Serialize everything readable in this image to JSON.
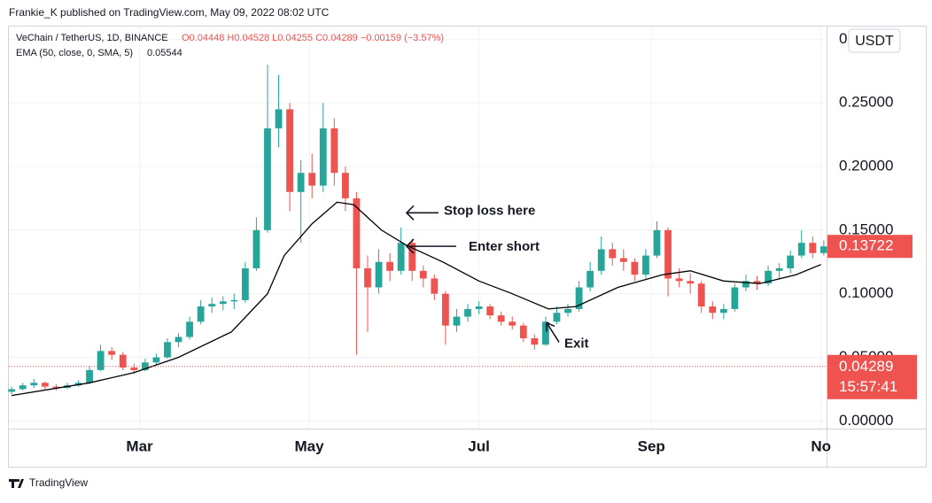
{
  "header": {
    "publisher": "Frankie_K published on TradingView.com, May 09, 2022 08:02 UTC",
    "symbol": "VeChain / TetherUS, 1D, BINANCE",
    "ohlc_text": "O0.04448 H0.04528 L0.04255 C0.04289 −0.00159 (−3.57%)",
    "indicator": "EMA (50, close, 0, SMA, 5)",
    "indicator_value": "0.05544",
    "currency": "USDT"
  },
  "chart_data": {
    "type": "candlestick",
    "x": [
      0,
      4,
      8,
      12,
      16,
      20,
      24,
      28,
      32,
      36,
      40,
      44,
      48,
      52,
      56,
      60,
      64,
      68,
      72,
      76,
      80,
      84,
      88,
      92,
      96,
      100,
      104,
      108,
      112,
      116,
      120,
      124,
      128,
      132,
      136,
      140,
      144,
      148,
      152,
      156,
      160,
      164,
      168,
      172,
      176,
      180,
      184,
      188,
      192,
      196,
      200,
      204,
      208,
      212,
      216,
      220,
      224,
      228,
      232,
      236,
      240,
      244,
      248,
      252,
      256,
      260,
      264,
      268,
      272,
      276,
      280,
      284,
      288,
      292
    ],
    "ohlc": [
      [
        0.023,
        0.027,
        0.021,
        0.025
      ],
      [
        0.025,
        0.03,
        0.024,
        0.028
      ],
      [
        0.028,
        0.033,
        0.026,
        0.03
      ],
      [
        0.03,
        0.031,
        0.025,
        0.027
      ],
      [
        0.027,
        0.029,
        0.024,
        0.026
      ],
      [
        0.026,
        0.03,
        0.025,
        0.028
      ],
      [
        0.028,
        0.032,
        0.027,
        0.03
      ],
      [
        0.03,
        0.043,
        0.029,
        0.04
      ],
      [
        0.04,
        0.06,
        0.039,
        0.055
      ],
      [
        0.055,
        0.058,
        0.048,
        0.052
      ],
      [
        0.052,
        0.054,
        0.04,
        0.042
      ],
      [
        0.042,
        0.045,
        0.037,
        0.04
      ],
      [
        0.04,
        0.049,
        0.039,
        0.046
      ],
      [
        0.046,
        0.053,
        0.044,
        0.05
      ],
      [
        0.05,
        0.065,
        0.049,
        0.062
      ],
      [
        0.062,
        0.069,
        0.058,
        0.066
      ],
      [
        0.066,
        0.082,
        0.064,
        0.078
      ],
      [
        0.078,
        0.095,
        0.076,
        0.09
      ],
      [
        0.09,
        0.097,
        0.085,
        0.092
      ],
      [
        0.092,
        0.098,
        0.087,
        0.094
      ],
      [
        0.094,
        0.1,
        0.088,
        0.095
      ],
      [
        0.095,
        0.125,
        0.093,
        0.12
      ],
      [
        0.12,
        0.16,
        0.118,
        0.15
      ],
      [
        0.15,
        0.28,
        0.148,
        0.23
      ],
      [
        0.23,
        0.272,
        0.215,
        0.245
      ],
      [
        0.245,
        0.25,
        0.165,
        0.18
      ],
      [
        0.18,
        0.205,
        0.14,
        0.195
      ],
      [
        0.195,
        0.21,
        0.175,
        0.185
      ],
      [
        0.185,
        0.25,
        0.18,
        0.23
      ],
      [
        0.23,
        0.238,
        0.185,
        0.195
      ],
      [
        0.195,
        0.2,
        0.165,
        0.175
      ],
      [
        0.175,
        0.18,
        0.052,
        0.12
      ],
      [
        0.12,
        0.13,
        0.07,
        0.105
      ],
      [
        0.105,
        0.135,
        0.1,
        0.125
      ],
      [
        0.125,
        0.132,
        0.11,
        0.118
      ],
      [
        0.118,
        0.152,
        0.115,
        0.14
      ],
      [
        0.14,
        0.143,
        0.11,
        0.118
      ],
      [
        0.118,
        0.122,
        0.105,
        0.112
      ],
      [
        0.112,
        0.115,
        0.095,
        0.1
      ],
      [
        0.1,
        0.102,
        0.06,
        0.075
      ],
      [
        0.075,
        0.088,
        0.07,
        0.082
      ],
      [
        0.082,
        0.092,
        0.078,
        0.088
      ],
      [
        0.088,
        0.094,
        0.084,
        0.09
      ],
      [
        0.09,
        0.092,
        0.08,
        0.083
      ],
      [
        0.083,
        0.086,
        0.075,
        0.078
      ],
      [
        0.078,
        0.082,
        0.072,
        0.075
      ],
      [
        0.075,
        0.077,
        0.062,
        0.065
      ],
      [
        0.065,
        0.068,
        0.056,
        0.06
      ],
      [
        0.06,
        0.082,
        0.059,
        0.078
      ],
      [
        0.078,
        0.09,
        0.076,
        0.085
      ],
      [
        0.085,
        0.092,
        0.082,
        0.088
      ],
      [
        0.088,
        0.11,
        0.086,
        0.105
      ],
      [
        0.105,
        0.125,
        0.102,
        0.118
      ],
      [
        0.118,
        0.145,
        0.115,
        0.135
      ],
      [
        0.135,
        0.14,
        0.122,
        0.128
      ],
      [
        0.128,
        0.135,
        0.118,
        0.125
      ],
      [
        0.125,
        0.128,
        0.11,
        0.115
      ],
      [
        0.115,
        0.135,
        0.112,
        0.13
      ],
      [
        0.13,
        0.157,
        0.128,
        0.15
      ],
      [
        0.15,
        0.152,
        0.098,
        0.112
      ],
      [
        0.112,
        0.12,
        0.105,
        0.11
      ],
      [
        0.11,
        0.116,
        0.1,
        0.108
      ],
      [
        0.108,
        0.11,
        0.085,
        0.09
      ],
      [
        0.09,
        0.094,
        0.08,
        0.085
      ],
      [
        0.085,
        0.092,
        0.08,
        0.088
      ],
      [
        0.088,
        0.108,
        0.086,
        0.105
      ],
      [
        0.105,
        0.115,
        0.102,
        0.11
      ],
      [
        0.11,
        0.114,
        0.103,
        0.108
      ],
      [
        0.108,
        0.122,
        0.106,
        0.118
      ],
      [
        0.118,
        0.124,
        0.112,
        0.12
      ],
      [
        0.12,
        0.134,
        0.116,
        0.13
      ],
      [
        0.13,
        0.15,
        0.128,
        0.14
      ],
      [
        0.14,
        0.145,
        0.128,
        0.132
      ],
      [
        0.132,
        0.142,
        0.13,
        0.13722
      ]
    ],
    "up_color": "#26a69a",
    "down_color": "#ef5350",
    "ema": {
      "color": "#000000",
      "x": [
        0,
        28,
        44,
        60,
        79,
        92,
        98,
        108,
        117,
        123,
        133,
        142,
        155,
        168,
        180,
        193,
        203,
        218,
        234,
        244,
        256,
        269,
        282,
        291
      ],
      "values": [
        0.02,
        0.03,
        0.038,
        0.05,
        0.07,
        0.1,
        0.13,
        0.155,
        0.172,
        0.17,
        0.15,
        0.138,
        0.125,
        0.11,
        0.1,
        0.088,
        0.09,
        0.105,
        0.115,
        0.118,
        0.11,
        0.108,
        0.115,
        0.123
      ]
    },
    "last_price": 0.13722,
    "current_price": 0.04289,
    "countdown": "15:57:41",
    "xlim": [
      -1,
      293
    ],
    "xticks": [
      {
        "value": 46,
        "label": "Mar"
      },
      {
        "value": 107,
        "label": "May"
      },
      {
        "value": 168,
        "label": "Jul"
      },
      {
        "value": 230,
        "label": "Sep"
      },
      {
        "value": 291,
        "label": "No"
      }
    ],
    "ylim": [
      -0.006,
      0.31
    ],
    "yticks": [
      {
        "value": 0,
        "label": "0.00000"
      },
      {
        "value": 0.05,
        "label": "0.05000"
      },
      {
        "value": 0.1,
        "label": "0.10000"
      },
      {
        "value": 0.15,
        "label": "0.15000"
      },
      {
        "value": 0.2,
        "label": "0.20000"
      },
      {
        "value": 0.25,
        "label": "0.25000"
      },
      {
        "value": 0.3,
        "label": "0"
      }
    ],
    "grid": true,
    "annotations": [
      {
        "text": "Stop loss here",
        "x": 142,
        "y": 0.165
      },
      {
        "text": "Enter short",
        "x": 142,
        "y": 0.138
      },
      {
        "text": "Exit",
        "x": 193,
        "y": 0.08
      }
    ]
  },
  "footer": {
    "brand": "TradingView"
  }
}
